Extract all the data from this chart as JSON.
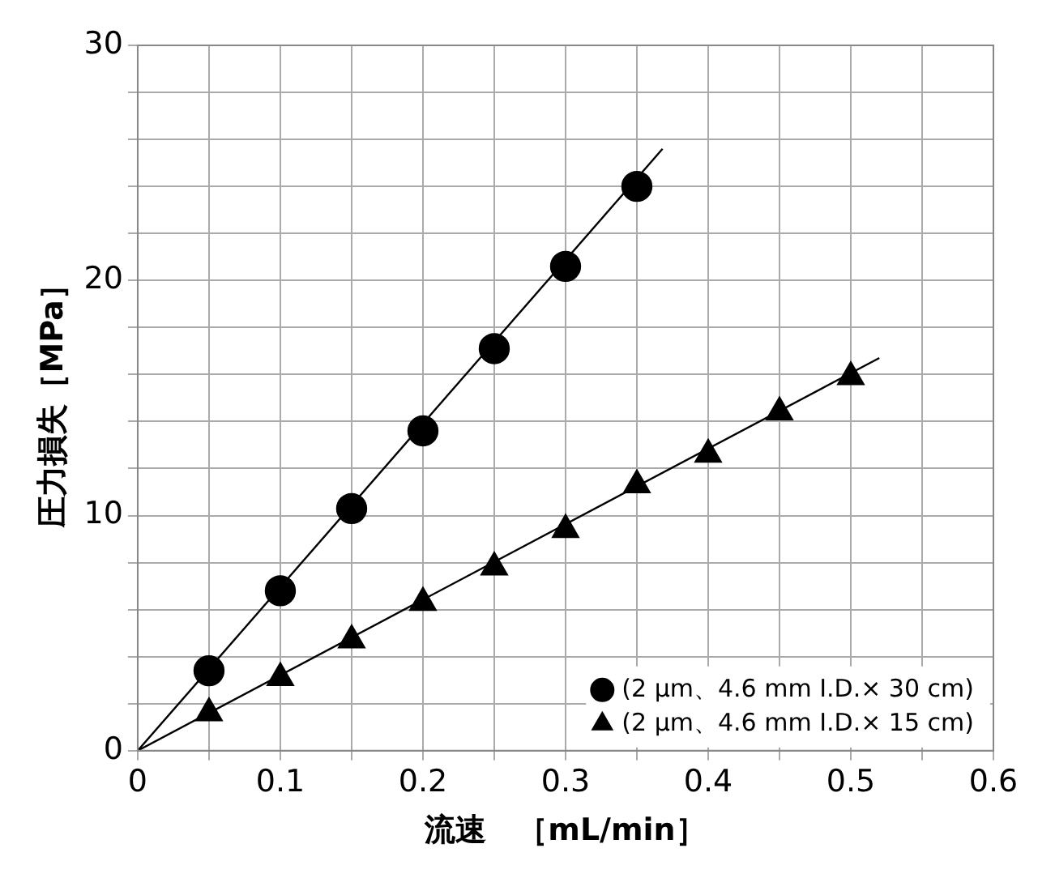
{
  "chart_data": {
    "type": "scatter",
    "xlabel": "流速　［mL/min］",
    "ylabel": "圧力損失［MPa］",
    "xlim": [
      0,
      0.6
    ],
    "ylim": [
      0,
      30
    ],
    "xticks": [
      0,
      {
        "value": 0.05,
        "label": null
      },
      0.1,
      {
        "value": 0.15,
        "label": null
      },
      0.2,
      {
        "value": 0.25,
        "label": null
      },
      0.3,
      {
        "value": 0.35,
        "label": null
      },
      0.4,
      {
        "value": 0.45,
        "label": null
      },
      0.5,
      {
        "value": 0.55,
        "label": null
      },
      0.6
    ],
    "yticks": [
      0,
      {
        "value": 2,
        "label": null
      },
      {
        "value": 4,
        "label": null
      },
      {
        "value": 6,
        "label": null
      },
      {
        "value": 8,
        "label": null
      },
      10,
      {
        "value": 12,
        "label": null
      },
      {
        "value": 14,
        "label": null
      },
      {
        "value": 16,
        "label": null
      },
      {
        "value": 18,
        "label": null
      },
      20,
      {
        "value": 22,
        "label": null
      },
      {
        "value": 24,
        "label": null
      },
      {
        "value": 26,
        "label": null
      },
      {
        "value": 28,
        "label": null
      },
      30
    ],
    "grid": true,
    "legend": "bottom right",
    "series": [
      {
        "name": "(2 μm、4.6 mm I.D.× 30 cm)",
        "marker": "circle",
        "color": "#000000",
        "x": [
          0.05,
          0.1,
          0.15,
          0.2,
          0.25,
          0.3,
          0.35
        ],
        "values": [
          3.4,
          6.8,
          10.3,
          13.6,
          17.1,
          20.6,
          24.0
        ]
      },
      {
        "name": "(2 μm、4.6 mm I.D.× 15 cm)",
        "marker": "triangle",
        "color": "#000000",
        "x": [
          0.05,
          0.1,
          0.15,
          0.2,
          0.25,
          0.3,
          0.35,
          0.4,
          0.45,
          0.5
        ],
        "values": [
          1.6,
          3.1,
          4.7,
          6.3,
          7.8,
          9.4,
          11.3,
          12.6,
          14.4,
          15.9
        ]
      },
      {
        "type": "line",
        "marker": "none",
        "line_style": "solid",
        "color": "#000000",
        "x": [
          0,
          0.368
        ],
        "values": [
          0,
          25.6
        ]
      },
      {
        "type": "line",
        "marker": "none",
        "line_style": "solid",
        "color": "#000000",
        "x": [
          0,
          0.52
        ],
        "values": [
          0,
          16.7
        ]
      }
    ]
  }
}
